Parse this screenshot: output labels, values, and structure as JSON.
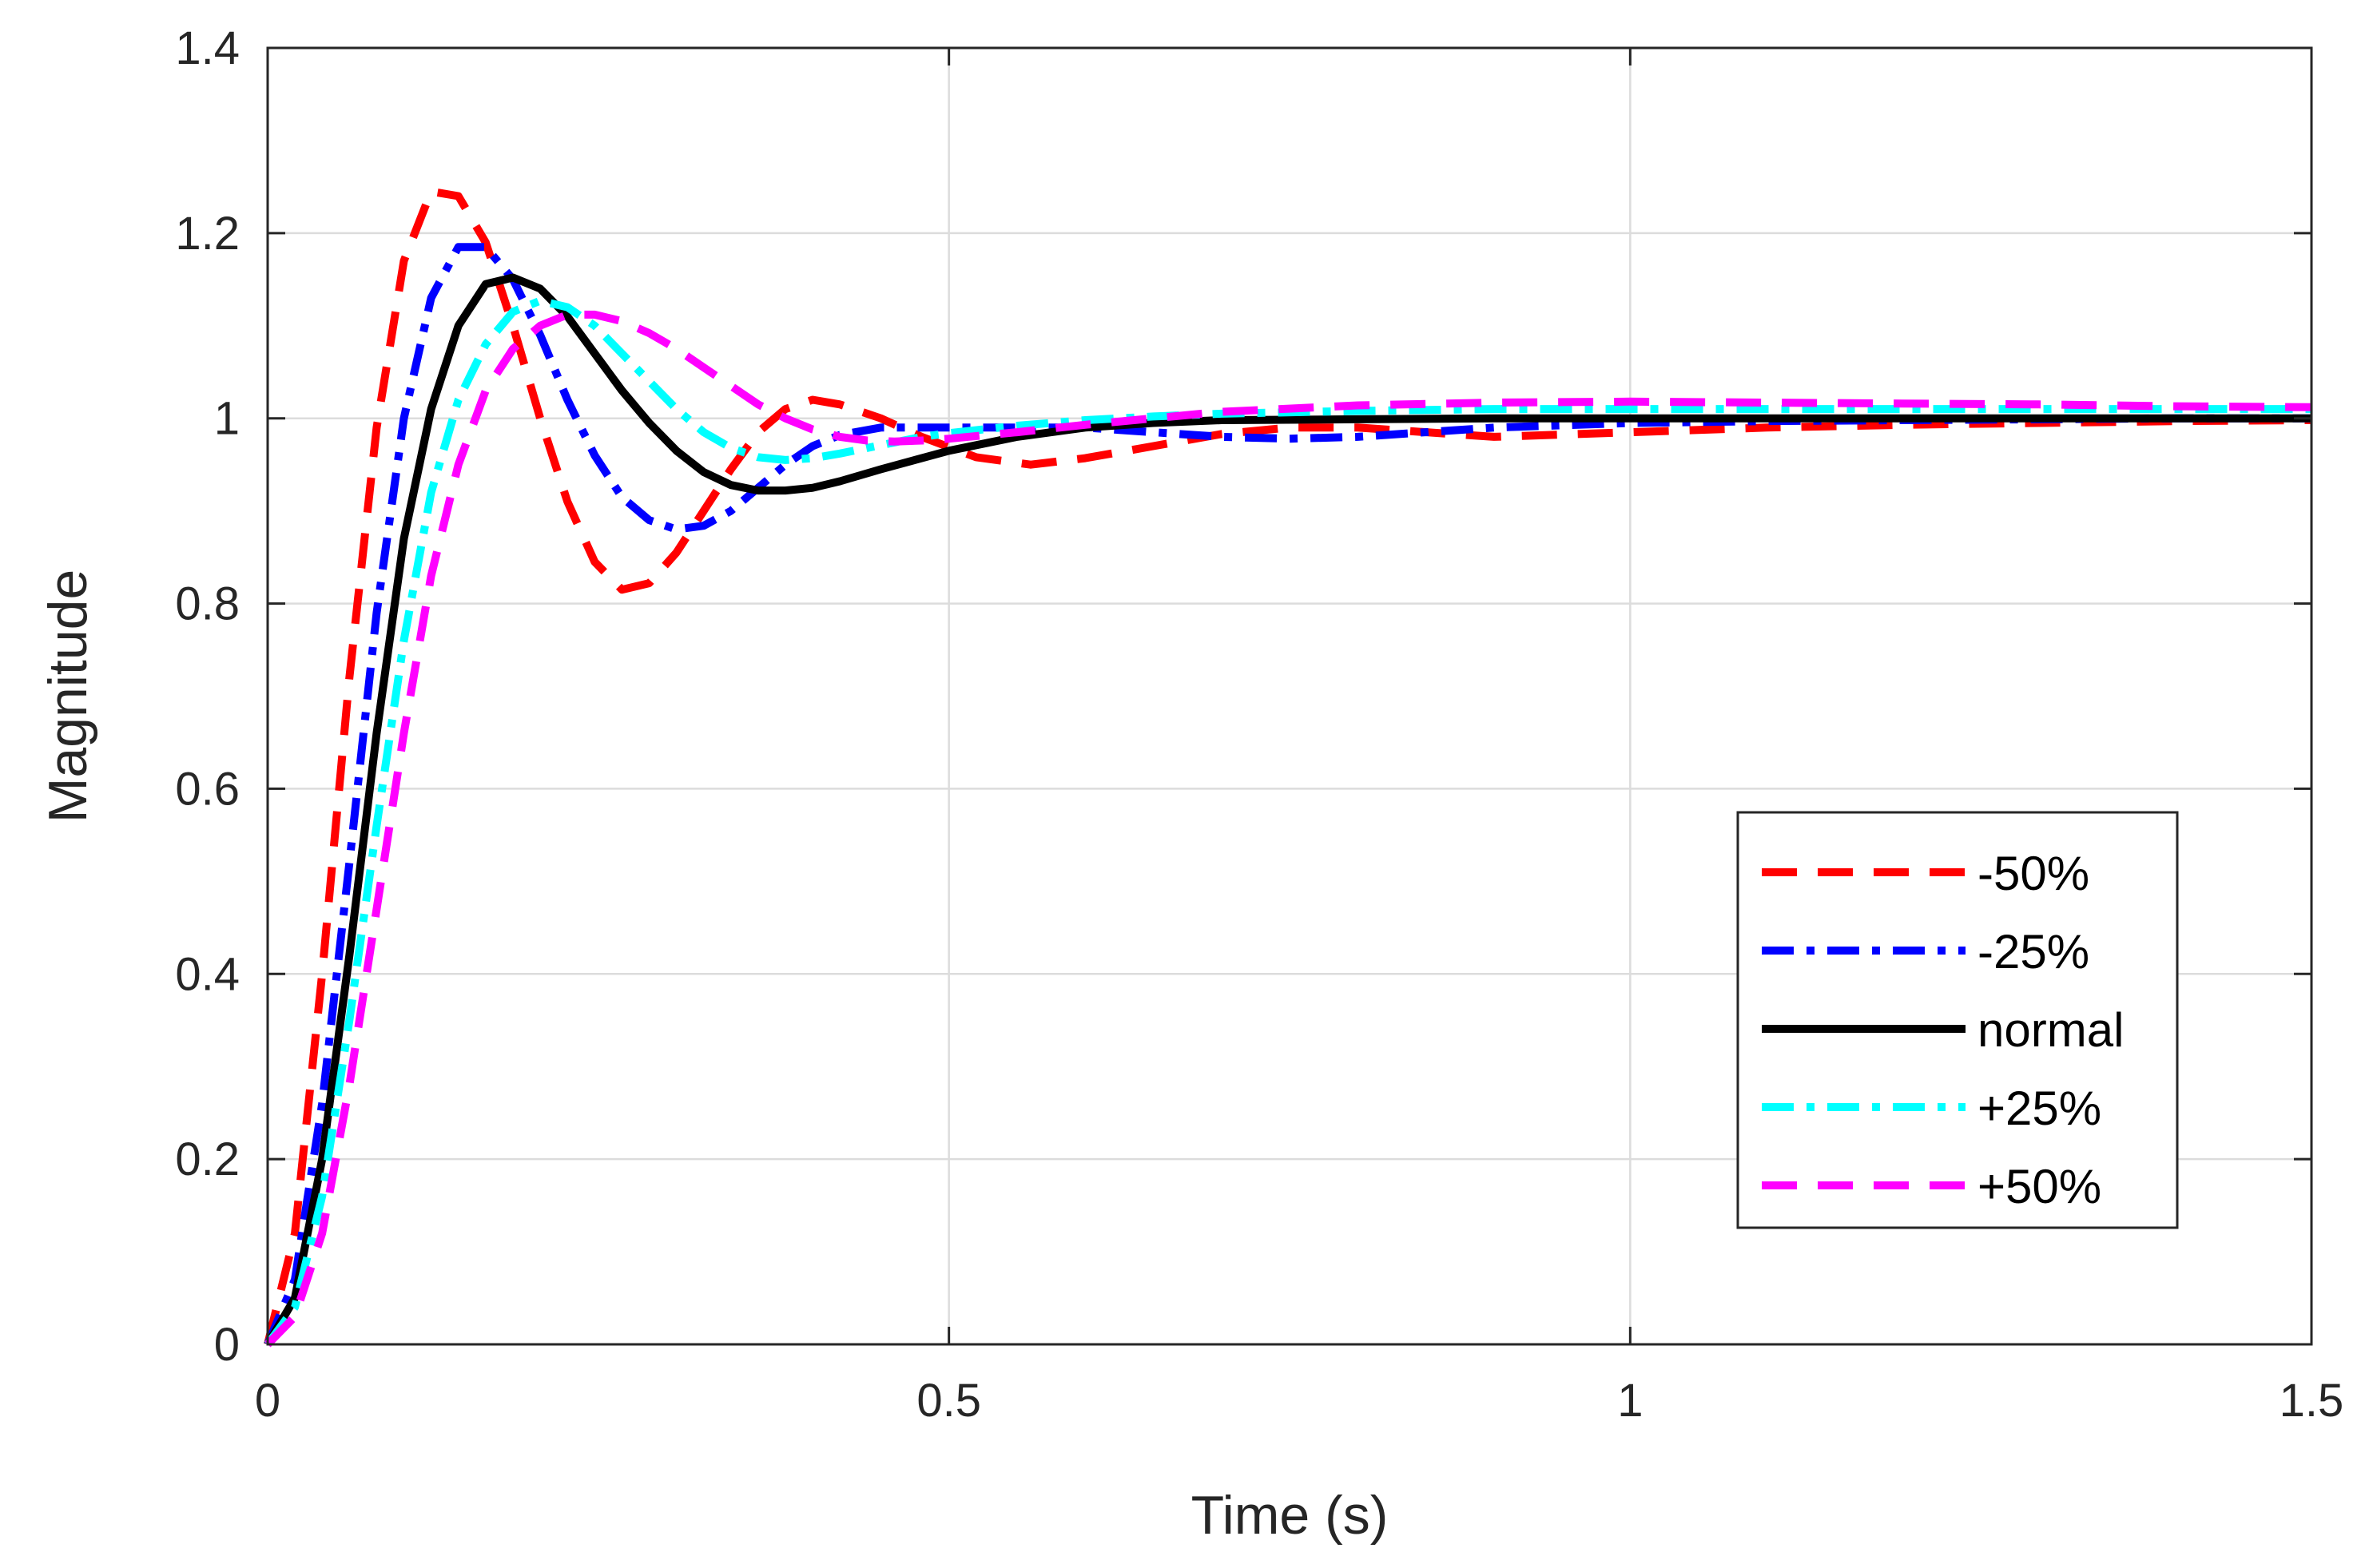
{
  "chart_data": {
    "type": "line",
    "title": "",
    "xlabel": "Time (s)",
    "ylabel": "Magnitude",
    "xlim": [
      0,
      1.5
    ],
    "ylim": [
      0,
      1.4
    ],
    "grid": true,
    "legend_position": "bottom-right",
    "xticks": [
      0,
      0.5,
      1,
      1.5
    ],
    "xtick_labels": [
      "0",
      "0.5",
      "1",
      "1.5"
    ],
    "yticks": [
      0,
      0.2,
      0.4,
      0.6,
      0.8,
      1.0,
      1.2,
      1.4
    ],
    "ytick_labels": [
      "0",
      "0.2",
      "0.4",
      "0.6",
      "0.8",
      "1",
      "1.2",
      "1.4"
    ],
    "series": [
      {
        "name": "-50%",
        "color": "#ff0000",
        "style": "dashed",
        "x": [
          0,
          0.02,
          0.04,
          0.06,
          0.08,
          0.1,
          0.12,
          0.14,
          0.16,
          0.18,
          0.2,
          0.22,
          0.24,
          0.26,
          0.28,
          0.3,
          0.32,
          0.34,
          0.36,
          0.38,
          0.4,
          0.42,
          0.45,
          0.48,
          0.52,
          0.56,
          0.6,
          0.65,
          0.7,
          0.75,
          0.8,
          0.9,
          1.0,
          1.1,
          1.2,
          1.3,
          1.4,
          1.5
        ],
        "y": [
          0,
          0.12,
          0.4,
          0.72,
          0.99,
          1.17,
          1.245,
          1.24,
          1.19,
          1.1,
          1.0,
          0.91,
          0.845,
          0.815,
          0.822,
          0.855,
          0.9,
          0.945,
          0.985,
          1.01,
          1.02,
          1.015,
          1.0,
          0.98,
          0.958,
          0.95,
          0.957,
          0.97,
          0.983,
          0.99,
          0.99,
          0.98,
          0.985,
          0.99,
          0.993,
          0.995,
          0.997,
          0.998
        ]
      },
      {
        "name": "-25%",
        "color": "#0000ff",
        "style": "dashdot",
        "x": [
          0,
          0.02,
          0.04,
          0.06,
          0.08,
          0.1,
          0.12,
          0.14,
          0.16,
          0.18,
          0.2,
          0.22,
          0.24,
          0.26,
          0.28,
          0.3,
          0.32,
          0.34,
          0.36,
          0.38,
          0.4,
          0.42,
          0.45,
          0.5,
          0.55,
          0.6,
          0.65,
          0.7,
          0.75,
          0.8,
          0.9,
          1.0,
          1.1,
          1.2,
          1.3,
          1.4,
          1.5
        ],
        "y": [
          0,
          0.07,
          0.26,
          0.52,
          0.79,
          1.0,
          1.13,
          1.185,
          1.185,
          1.15,
          1.09,
          1.02,
          0.96,
          0.915,
          0.89,
          0.88,
          0.884,
          0.9,
          0.925,
          0.95,
          0.97,
          0.982,
          0.99,
          0.99,
          0.99,
          0.99,
          0.985,
          0.98,
          0.978,
          0.98,
          0.99,
          0.995,
          0.997,
          0.998,
          0.999,
          1.0,
          1.0
        ]
      },
      {
        "name": "normal",
        "color": "#000000",
        "style": "solid",
        "x": [
          0,
          0.02,
          0.04,
          0.06,
          0.08,
          0.1,
          0.12,
          0.14,
          0.16,
          0.18,
          0.2,
          0.22,
          0.24,
          0.26,
          0.28,
          0.3,
          0.32,
          0.34,
          0.36,
          0.38,
          0.4,
          0.42,
          0.45,
          0.5,
          0.55,
          0.6,
          0.65,
          0.7,
          0.8,
          0.9,
          1.0,
          1.1,
          1.2,
          1.3,
          1.4,
          1.5
        ],
        "y": [
          0,
          0.05,
          0.2,
          0.42,
          0.66,
          0.87,
          1.01,
          1.1,
          1.145,
          1.152,
          1.14,
          1.11,
          1.07,
          1.03,
          0.995,
          0.965,
          0.942,
          0.928,
          0.922,
          0.922,
          0.925,
          0.932,
          0.945,
          0.965,
          0.98,
          0.99,
          0.995,
          0.998,
          0.999,
          1.0,
          1.0,
          1.0,
          1.0,
          1.0,
          1.0,
          1.0
        ]
      },
      {
        "name": "+25%",
        "color": "#00ffff",
        "style": "dashdot",
        "x": [
          0,
          0.02,
          0.04,
          0.06,
          0.08,
          0.1,
          0.12,
          0.14,
          0.16,
          0.18,
          0.2,
          0.22,
          0.24,
          0.26,
          0.28,
          0.3,
          0.32,
          0.34,
          0.36,
          0.38,
          0.4,
          0.42,
          0.44,
          0.46,
          0.48,
          0.5,
          0.55,
          0.6,
          0.65,
          0.7,
          0.8,
          0.9,
          1.0,
          1.1,
          1.2,
          1.3,
          1.4,
          1.5
        ],
        "y": [
          0,
          0.04,
          0.16,
          0.35,
          0.56,
          0.76,
          0.92,
          1.02,
          1.08,
          1.115,
          1.127,
          1.12,
          1.1,
          1.07,
          1.04,
          1.01,
          0.985,
          0.968,
          0.958,
          0.955,
          0.957,
          0.962,
          0.968,
          0.974,
          0.98,
          0.984,
          0.992,
          0.998,
          1.002,
          1.005,
          1.008,
          1.01,
          1.01,
          1.01,
          1.01,
          1.01,
          1.01,
          1.01
        ]
      },
      {
        "name": "+50%",
        "color": "#ff00ff",
        "style": "dashed",
        "x": [
          0,
          0.02,
          0.04,
          0.06,
          0.08,
          0.1,
          0.12,
          0.14,
          0.16,
          0.18,
          0.2,
          0.22,
          0.24,
          0.26,
          0.28,
          0.3,
          0.32,
          0.34,
          0.36,
          0.38,
          0.4,
          0.42,
          0.44,
          0.46,
          0.48,
          0.5,
          0.55,
          0.6,
          0.65,
          0.7,
          0.8,
          0.9,
          1.0,
          1.1,
          1.2,
          1.3,
          1.4,
          1.5
        ],
        "y": [
          0,
          0.03,
          0.12,
          0.28,
          0.47,
          0.66,
          0.83,
          0.95,
          1.03,
          1.075,
          1.1,
          1.112,
          1.112,
          1.105,
          1.092,
          1.075,
          1.055,
          1.035,
          1.015,
          1.0,
          0.988,
          0.98,
          0.976,
          0.975,
          0.976,
          0.978,
          0.985,
          0.993,
          1.0,
          1.007,
          1.014,
          1.017,
          1.018,
          1.017,
          1.016,
          1.015,
          1.013,
          1.012
        ]
      }
    ]
  }
}
